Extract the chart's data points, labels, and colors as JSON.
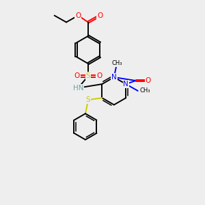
{
  "background_color": "#eeeeee",
  "C": "#000000",
  "N": "#0000ff",
  "O": "#ff0000",
  "S_sulfonamide": "#cccc00",
  "S_sulfanyl": "#cccc00",
  "H_color": "#6fa0a0",
  "bond_lw": 1.4,
  "font_size": 7.5,
  "xlim": [
    -1.5,
    6.0
  ],
  "ylim": [
    -5.5,
    5.0
  ]
}
